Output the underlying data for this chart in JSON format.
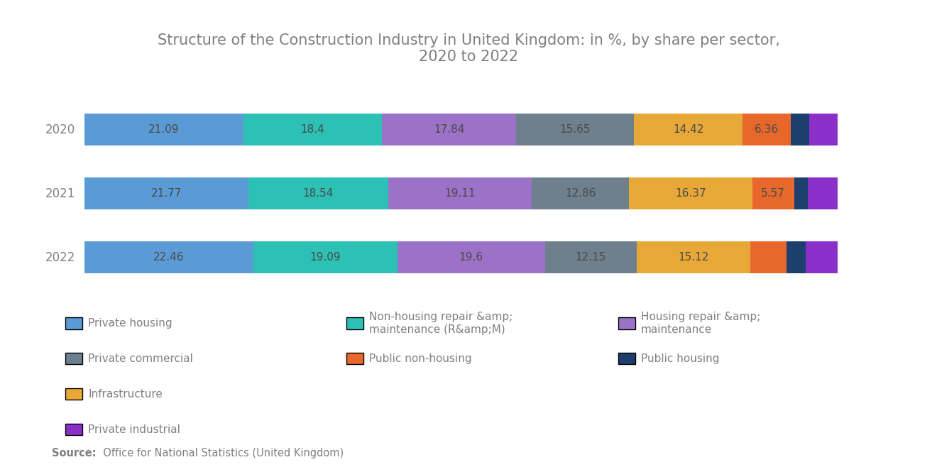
{
  "title": "Structure of the Construction Industry in United Kingdom: in %, by share per sector,\n2020 to 2022",
  "years": [
    "2020",
    "2021",
    "2022"
  ],
  "sectors": [
    "Private housing",
    "Non-housing repair &amp;\nmaintenance (R&amp;M)",
    "Housing repair &amp;\nmaintenance",
    "Private commercial",
    "Infrastructure",
    "Public non-housing",
    "Public housing",
    "Private industrial"
  ],
  "colors": [
    "#5B9BD5",
    "#2DC0B4",
    "#9B72C8",
    "#6E7F8D",
    "#E8A838",
    "#E8682C",
    "#1C3F6E",
    "#8B2FC9"
  ],
  "data": {
    "2020": [
      21.09,
      18.4,
      17.84,
      15.65,
      14.42,
      6.36,
      2.5,
      3.74
    ],
    "2021": [
      21.77,
      18.54,
      19.11,
      12.86,
      16.37,
      5.57,
      1.8,
      3.98
    ],
    "2022": [
      22.46,
      19.09,
      19.6,
      12.15,
      15.12,
      4.8,
      2.5,
      4.28
    ]
  },
  "source_bold": "Source:",
  "source_rest": "  Office for National Statistics (United Kingdom)",
  "background_color": "#FFFFFF",
  "text_color": "#7F7F7F",
  "label_color": "#4A4A4A",
  "bar_height": 0.5,
  "label_fontsize": 11,
  "title_fontsize": 15,
  "legend_fontsize": 11,
  "year_fontsize": 12
}
